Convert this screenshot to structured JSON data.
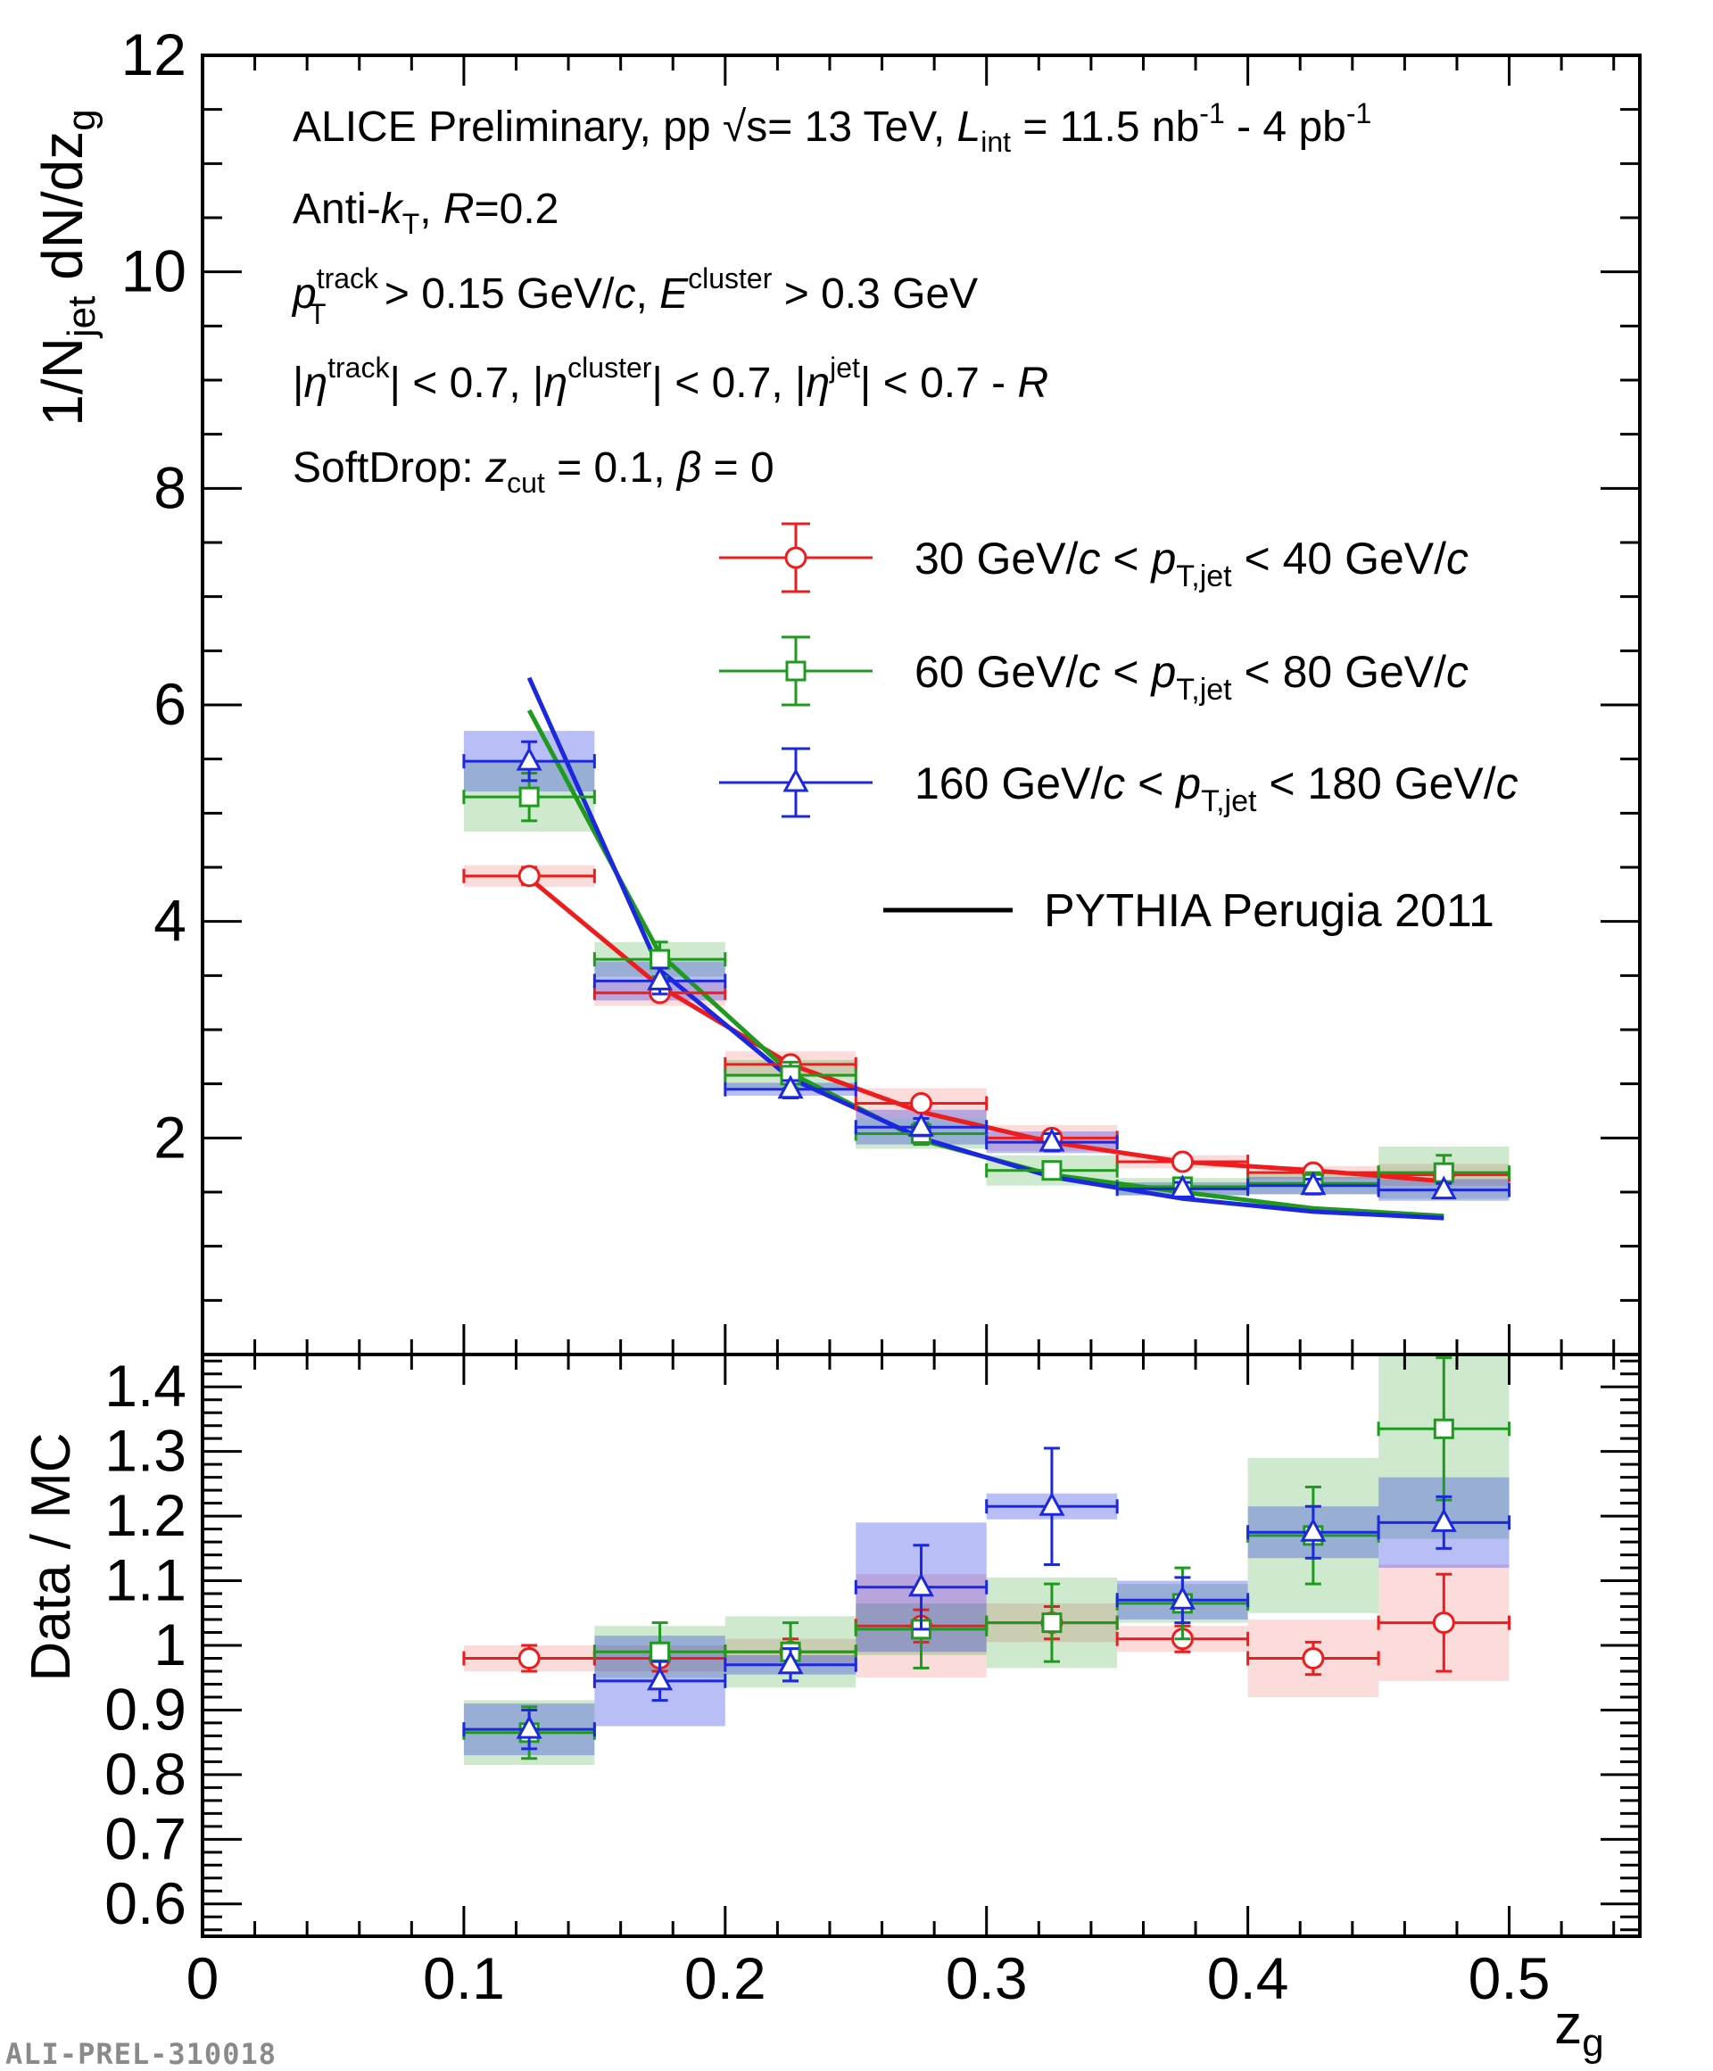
{
  "chart_data": [
    {
      "type": "scatter",
      "panel": "top",
      "ylabel": "1/N_jet dN/dz_g",
      "xlim": [
        0,
        0.55
      ],
      "ylim": [
        0,
        12
      ],
      "x_tick_labels": [
        "0",
        "0.1",
        "0.2",
        "0.3",
        "0.4",
        "0.5"
      ],
      "y_tick_labels": [
        "2",
        "4",
        "6",
        "8",
        "10",
        "12"
      ],
      "annotations": {
        "line1": "ALICE Preliminary, pp √s= 13 TeV, L_int = 11.5 nb⁻¹ - 4 pb⁻¹",
        "line2": "Anti-k_T, R=0.2",
        "line3": "p_T^track > 0.15 GeV/c, E^cluster > 0.3 GeV",
        "line4": "|η^track| < 0.7, |η^cluster| < 0.7, |η^jet| < 0.7 - R",
        "line5": "SoftDrop: z_cut = 0.1, β = 0"
      },
      "bin_edges": [
        0.1,
        0.15,
        0.2,
        0.25,
        0.3,
        0.35,
        0.4,
        0.45,
        0.5
      ],
      "series": [
        {
          "name": "30 GeV/c < p_T,jet < 40 GeV/c",
          "color": "#ee1c1c",
          "marker": "circle",
          "x": [
            0.125,
            0.175,
            0.225,
            0.275,
            0.325,
            0.375,
            0.425,
            0.475
          ],
          "y": [
            4.42,
            3.34,
            2.68,
            2.32,
            2.0,
            1.78,
            1.68,
            1.66
          ],
          "stat_err": [
            0.08,
            0.06,
            0.05,
            0.05,
            0.05,
            0.04,
            0.04,
            0.05
          ],
          "sys_err": [
            0.1,
            0.12,
            0.12,
            0.14,
            0.12,
            0.06,
            0.06,
            0.1
          ]
        },
        {
          "name": "60 GeV/c < p_T,jet < 80 GeV/c",
          "color": "#1f9a1f",
          "marker": "square",
          "x": [
            0.125,
            0.175,
            0.225,
            0.275,
            0.325,
            0.375,
            0.425,
            0.475
          ],
          "y": [
            5.15,
            3.65,
            2.58,
            2.04,
            1.7,
            1.55,
            1.58,
            1.68
          ],
          "stat_err": [
            0.22,
            0.16,
            0.12,
            0.1,
            0.08,
            0.06,
            0.1,
            0.16
          ],
          "sys_err": [
            0.32,
            0.16,
            0.14,
            0.14,
            0.14,
            0.08,
            0.1,
            0.24
          ]
        },
        {
          "name": "160 GeV/c < p_T,jet < 180 GeV/c",
          "color": "#1c28e0",
          "marker": "triangle",
          "x": [
            0.125,
            0.175,
            0.225,
            0.275,
            0.325,
            0.375,
            0.425,
            0.475
          ],
          "y": [
            5.48,
            3.45,
            2.45,
            2.1,
            1.96,
            1.53,
            1.56,
            1.52
          ],
          "stat_err": [
            0.18,
            0.12,
            0.08,
            0.08,
            0.08,
            0.06,
            0.06,
            0.06
          ],
          "sys_err": [
            0.28,
            0.18,
            0.06,
            0.16,
            0.1,
            0.06,
            0.08,
            0.1
          ]
        }
      ],
      "pythia_curves": [
        {
          "color": "#ee1c1c",
          "x": [
            0.125,
            0.175,
            0.225,
            0.275,
            0.325,
            0.375,
            0.425,
            0.475
          ],
          "y": [
            4.4,
            3.4,
            2.68,
            2.24,
            1.96,
            1.78,
            1.7,
            1.6
          ]
        },
        {
          "color": "#1f9a1f",
          "x": [
            0.125,
            0.175,
            0.225,
            0.275,
            0.325,
            0.375,
            0.425,
            0.475
          ],
          "y": [
            5.95,
            3.7,
            2.6,
            1.98,
            1.66,
            1.5,
            1.35,
            1.28
          ]
        },
        {
          "color": "#1c28e0",
          "x": [
            0.125,
            0.175,
            0.225,
            0.275,
            0.325,
            0.375,
            0.425,
            0.475
          ],
          "y": [
            6.25,
            3.55,
            2.55,
            2.0,
            1.64,
            1.44,
            1.32,
            1.26
          ]
        }
      ],
      "pythia_label": "PYTHIA Perugia 2011"
    },
    {
      "type": "scatter",
      "panel": "bottom",
      "xlabel": "z_g",
      "ylabel": "Data / MC",
      "xlim": [
        0,
        0.55
      ],
      "ylim": [
        0.55,
        1.45
      ],
      "y_tick_labels": [
        "0.6",
        "0.7",
        "0.8",
        "0.9",
        "1",
        "1.1",
        "1.2",
        "1.3",
        "1.4"
      ],
      "bin_edges": [
        0.1,
        0.15,
        0.2,
        0.25,
        0.3,
        0.35,
        0.4,
        0.45,
        0.5
      ],
      "series": [
        {
          "name": "30 GeV/c < p_T,jet < 40 GeV/c",
          "color": "#ee1c1c",
          "marker": "circle",
          "x": [
            0.125,
            0.175,
            0.225,
            0.275,
            0.325,
            0.375,
            0.425,
            0.475
          ],
          "y": [
            0.98,
            0.98,
            0.99,
            1.03,
            1.035,
            1.01,
            0.98,
            1.035
          ],
          "stat_err": [
            0.02,
            0.02,
            0.02,
            0.025,
            0.025,
            0.02,
            0.025,
            0.075
          ],
          "sys_err": [
            0.02,
            0.02,
            0.02,
            0.08,
            0.03,
            0.02,
            0.06,
            0.09
          ]
        },
        {
          "name": "60 GeV/c < p_T,jet < 80 GeV/c",
          "color": "#1f9a1f",
          "marker": "square",
          "x": [
            0.125,
            0.175,
            0.225,
            0.275,
            0.325,
            0.375,
            0.425,
            0.475
          ],
          "y": [
            0.865,
            0.99,
            0.99,
            1.025,
            1.035,
            1.065,
            1.17,
            1.335
          ],
          "stat_err": [
            0.04,
            0.045,
            0.045,
            0.06,
            0.06,
            0.055,
            0.075,
            0.11
          ],
          "sys_err": [
            0.05,
            0.04,
            0.055,
            0.04,
            0.07,
            0.03,
            0.12,
            0.17
          ]
        },
        {
          "name": "160 GeV/c < p_T,jet < 180 GeV/c",
          "color": "#1c28e0",
          "marker": "triangle",
          "x": [
            0.125,
            0.175,
            0.225,
            0.275,
            0.325,
            0.375,
            0.425,
            0.475
          ],
          "y": [
            0.87,
            0.945,
            0.97,
            1.09,
            1.215,
            1.07,
            1.175,
            1.19
          ],
          "stat_err": [
            0.03,
            0.03,
            0.025,
            0.065,
            0.09,
            0.035,
            0.04,
            0.04
          ],
          "sys_err": [
            0.04,
            0.07,
            0.015,
            0.1,
            0.02,
            0.03,
            0.04,
            0.07
          ]
        }
      ]
    }
  ],
  "watermark": "ALI-PREL-310018"
}
